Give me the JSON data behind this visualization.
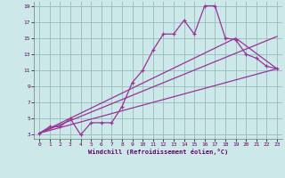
{
  "title": "",
  "xlabel": "Windchill (Refroidissement éolien,°C)",
  "bg_color": "#cce8e8",
  "line_color": "#993399",
  "grid_color": "#99bbbb",
  "xlim": [
    -0.5,
    23.5
  ],
  "ylim": [
    2.5,
    19.5
  ],
  "xticks": [
    0,
    1,
    2,
    3,
    4,
    5,
    6,
    7,
    8,
    9,
    10,
    11,
    12,
    13,
    14,
    15,
    16,
    17,
    18,
    19,
    20,
    21,
    22,
    23
  ],
  "yticks": [
    3,
    5,
    7,
    9,
    11,
    13,
    15,
    17,
    19
  ],
  "data_x": [
    0,
    1,
    2,
    3,
    4,
    5,
    6,
    7,
    8,
    9,
    10,
    11,
    12,
    13,
    14,
    15,
    16,
    17,
    18,
    19,
    20,
    21,
    22,
    23
  ],
  "data_y": [
    3.2,
    4.0,
    4.0,
    5.0,
    3.0,
    4.5,
    4.5,
    4.5,
    6.5,
    9.5,
    11.0,
    13.5,
    15.5,
    15.5,
    17.2,
    15.5,
    19.0,
    19.0,
    15.0,
    14.8,
    13.0,
    12.5,
    11.5,
    11.2
  ],
  "line1_x": [
    0,
    23
  ],
  "line1_y": [
    3.2,
    11.2
  ],
  "line2_x": [
    0,
    23
  ],
  "line2_y": [
    3.2,
    15.2
  ],
  "line3_x": [
    0,
    19,
    23
  ],
  "line3_y": [
    3.2,
    15.0,
    11.2
  ]
}
